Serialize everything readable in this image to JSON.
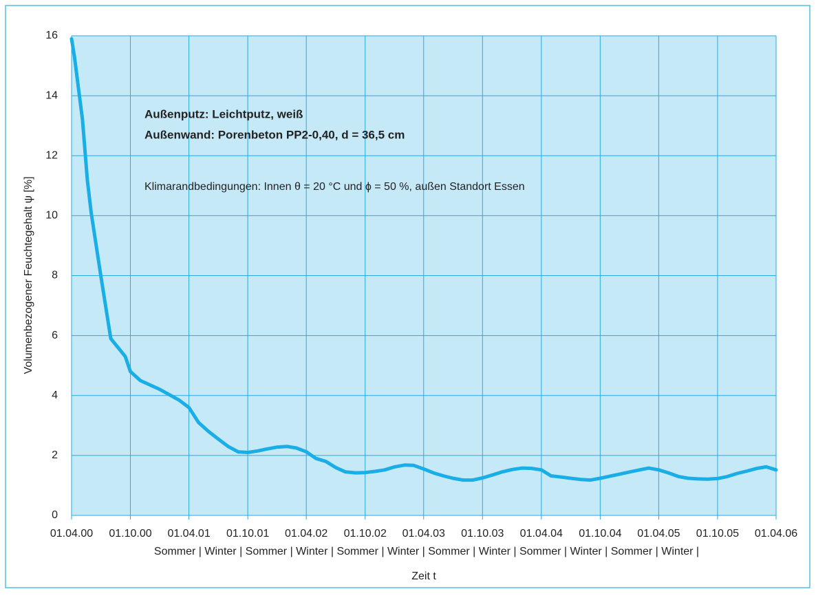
{
  "chart_data": {
    "type": "line",
    "ylabel": "Volumenbezogener Feuchtegehalt ψ [%]",
    "xlabel": "Zeit t",
    "season_labels": "Sommer | Winter | Sommer | Winter | Sommer | Winter | Sommer | Winter | Sommer | Winter | Sommer | Winter |",
    "annotations": [
      "Außenputz: Leichtputz, weiß",
      "Außenwand: Porenbeton PP2-0,40, d = 36,5 cm",
      "Klimarandbedingungen: Innen θ = 20 °C und ϕ = 50 %, außen Standort Essen"
    ],
    "xlim": [
      "2000-04-01",
      "2006-04-01"
    ],
    "xticks": [
      {
        "value": "2000-04-01",
        "label": "01.04.00"
      },
      {
        "value": "2000-10-01",
        "label": "01.10.00"
      },
      {
        "value": "2001-04-01",
        "label": "01.04.01"
      },
      {
        "value": "2001-10-01",
        "label": "01.10.01"
      },
      {
        "value": "2002-04-01",
        "label": "01.04.02"
      },
      {
        "value": "2002-10-01",
        "label": "01.10.02"
      },
      {
        "value": "2003-04-01",
        "label": "01.04.03"
      },
      {
        "value": "2003-10-01",
        "label": "01.10.03"
      },
      {
        "value": "2004-04-01",
        "label": "01.04.04"
      },
      {
        "value": "2004-10-01",
        "label": "01.10.04"
      },
      {
        "value": "2005-04-01",
        "label": "01.04.05"
      },
      {
        "value": "2005-10-01",
        "label": "01.10.05"
      },
      {
        "value": "2006-04-01",
        "label": "01.04.06"
      }
    ],
    "ylim": [
      0,
      16
    ],
    "yticks": [
      0,
      2,
      4,
      6,
      8,
      10,
      12,
      14,
      16
    ],
    "grid": true,
    "x": [
      "2000-04-01",
      "2000-04-10",
      "2000-05-05",
      "2000-05-20",
      "2000-06-01",
      "2000-07-01",
      "2000-08-01",
      "2000-09-15",
      "2000-10-01",
      "2000-11-01",
      "2001-01-01",
      "2001-03-01",
      "2001-04-01",
      "2001-05-01",
      "2001-06-01",
      "2001-07-01",
      "2001-08-01",
      "2001-09-01",
      "2001-10-01",
      "2001-11-01",
      "2001-12-01",
      "2002-01-01",
      "2002-02-01",
      "2002-03-01",
      "2002-04-01",
      "2002-05-01",
      "2002-06-01",
      "2002-07-01",
      "2002-08-01",
      "2002-09-01",
      "2002-10-01",
      "2002-11-01",
      "2002-12-01",
      "2003-01-01",
      "2003-02-01",
      "2003-03-01",
      "2003-04-01",
      "2003-05-01",
      "2003-06-01",
      "2003-07-01",
      "2003-08-01",
      "2003-09-01",
      "2003-10-01",
      "2003-11-01",
      "2003-12-01",
      "2004-01-01",
      "2004-02-01",
      "2004-03-01",
      "2004-04-01",
      "2004-05-01",
      "2004-06-01",
      "2004-07-01",
      "2004-08-01",
      "2004-09-01",
      "2004-10-01",
      "2004-11-01",
      "2004-12-01",
      "2005-01-01",
      "2005-02-01",
      "2005-03-01",
      "2005-04-01",
      "2005-05-01",
      "2005-06-01",
      "2005-07-01",
      "2005-08-01",
      "2005-09-01",
      "2005-10-01",
      "2005-11-01",
      "2005-12-01",
      "2006-01-01",
      "2006-02-01",
      "2006-03-01",
      "2006-04-01"
    ],
    "series": [
      {
        "color": "#1aaee6",
        "values": [
          15.9,
          15.3,
          13.2,
          11.2,
          10.1,
          8.0,
          5.9,
          5.3,
          4.8,
          4.5,
          4.2,
          3.85,
          3.6,
          3.1,
          2.8,
          2.55,
          2.3,
          2.12,
          2.1,
          2.15,
          2.22,
          2.28,
          2.3,
          2.25,
          2.12,
          1.9,
          1.8,
          1.6,
          1.45,
          1.42,
          1.43,
          1.47,
          1.52,
          1.62,
          1.68,
          1.67,
          1.55,
          1.42,
          1.32,
          1.24,
          1.18,
          1.18,
          1.25,
          1.35,
          1.45,
          1.53,
          1.58,
          1.57,
          1.52,
          1.32,
          1.28,
          1.24,
          1.2,
          1.18,
          1.24,
          1.31,
          1.38,
          1.45,
          1.52,
          1.58,
          1.52,
          1.42,
          1.3,
          1.24,
          1.22,
          1.21,
          1.23,
          1.3,
          1.4,
          1.48,
          1.57,
          1.62,
          1.52
        ]
      }
    ]
  }
}
